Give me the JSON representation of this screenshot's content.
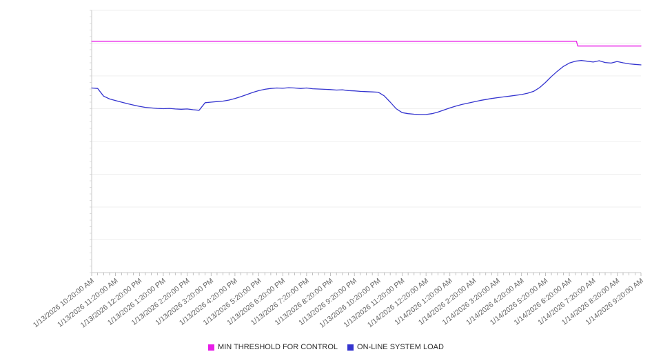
{
  "chart_data": {
    "type": "line",
    "title": "",
    "xlabel": "",
    "ylabel": "",
    "ylim": [
      0,
      100
    ],
    "grid": true,
    "gridline_count": 9,
    "legend_position": "bottom-center",
    "x_hours_span": 23,
    "x_tick_labels": [
      "1/13/2026 10:20:00 AM",
      "1/13/2026 11:20:00 AM",
      "1/13/2026 12:20:00 PM",
      "1/13/2026 1:20:00 PM",
      "1/13/2026 2:20:00 PM",
      "1/13/2026 3:20:00 PM",
      "1/13/2026 4:20:00 PM",
      "1/13/2026 5:20:00 PM",
      "1/13/2026 6:20:00 PM",
      "1/13/2026 7:20:00 PM",
      "1/13/2026 8:20:00 PM",
      "1/13/2026 9:20:00 PM",
      "1/13/2026 10:20:00 PM",
      "1/13/2026 11:20:00 PM",
      "1/14/2026 12:20:00 AM",
      "1/14/2026 1:20:00 AM",
      "1/14/2026 2:20:00 AM",
      "1/14/2026 3:20:00 AM",
      "1/14/2026 4:20:00 AM",
      "1/14/2026 5:20:00 AM",
      "1/14/2026 6:20:00 AM",
      "1/14/2026 7:20:00 AM",
      "1/14/2026 8:20:00 AM",
      "1/14/2026 9:20:00 AM"
    ],
    "series": [
      {
        "name": "MIN THRESHOLD FOR CONTROL",
        "color": "#e81ee8",
        "points_t_v": [
          [
            0,
            88.2
          ],
          [
            20.3,
            88.2
          ],
          [
            20.35,
            86.4
          ],
          [
            23,
            86.4
          ]
        ]
      },
      {
        "name": "ON-LINE SYSTEM LOAD",
        "color": "#3434cf",
        "t_step_hours": 0.25,
        "values": [
          70.4,
          70.2,
          67.3,
          66.2,
          65.6,
          65.0,
          64.4,
          63.9,
          63.4,
          63.0,
          62.8,
          62.6,
          62.5,
          62.6,
          62.4,
          62.3,
          62.4,
          62.1,
          61.9,
          64.8,
          65.0,
          65.2,
          65.4,
          65.8,
          66.4,
          67.1,
          67.9,
          68.7,
          69.4,
          69.9,
          70.2,
          70.4,
          70.3,
          70.5,
          70.4,
          70.2,
          70.4,
          70.1,
          70.0,
          69.9,
          69.8,
          69.6,
          69.7,
          69.4,
          69.3,
          69.1,
          69.0,
          68.9,
          68.8,
          67.4,
          65.0,
          62.5,
          61.0,
          60.6,
          60.4,
          60.3,
          60.3,
          60.6,
          61.2,
          62.0,
          62.8,
          63.5,
          64.1,
          64.6,
          65.1,
          65.6,
          66.0,
          66.4,
          66.7,
          67.0,
          67.3,
          67.6,
          67.9,
          68.4,
          69.1,
          70.5,
          72.5,
          74.8,
          76.8,
          78.6,
          79.9,
          80.6,
          80.9,
          80.6,
          80.3,
          80.8,
          80.1,
          79.9,
          80.5,
          80.0,
          79.6,
          79.4,
          79.2
        ]
      }
    ]
  }
}
